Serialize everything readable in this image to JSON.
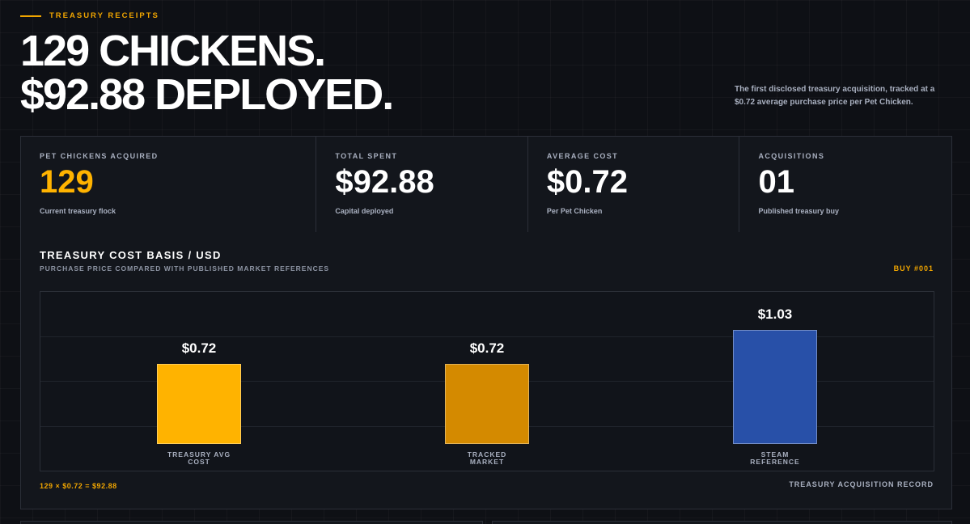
{
  "header": {
    "eyebrow": "TREASURY RECEIPTS",
    "headline": [
      "129 CHICKENS.",
      "$92.88 DEPLOYED."
    ],
    "description": "The first disclosed treasury acquisition, tracked at a $0.72 average purchase price per Pet Chicken."
  },
  "stats": [
    {
      "label": "PET CHICKENS ACQUIRED",
      "value": "129",
      "caption": "Current treasury flock"
    },
    {
      "label": "TOTAL SPENT",
      "value": "$92.88",
      "caption": "Capital deployed"
    },
    {
      "label": "AVERAGE COST",
      "value": "$0.72",
      "caption": "Per Pet Chicken"
    },
    {
      "label": "ACQUISITIONS",
      "value": "01",
      "caption": "Published treasury buy"
    }
  ],
  "chart_data": {
    "type": "bar",
    "title": "TREASURY COST BASIS / USD",
    "subtitle": "PURCHASE PRICE COMPARED WITH PUBLISHED MARKET REFERENCES",
    "tag": "BUY #001",
    "categories": [
      "TREASURY AVG COST",
      "TRACKED MARKET",
      "STEAM REFERENCE"
    ],
    "values": [
      0.72,
      0.72,
      1.03
    ],
    "value_labels": [
      "$0.72",
      "$0.72",
      "$1.03"
    ],
    "colors": [
      "#ffb300",
      "#d48a00",
      "#2850a8"
    ],
    "footnote": "129 × $0.72 = $92.88",
    "record": "TREASURY ACQUISITION RECORD"
  }
}
